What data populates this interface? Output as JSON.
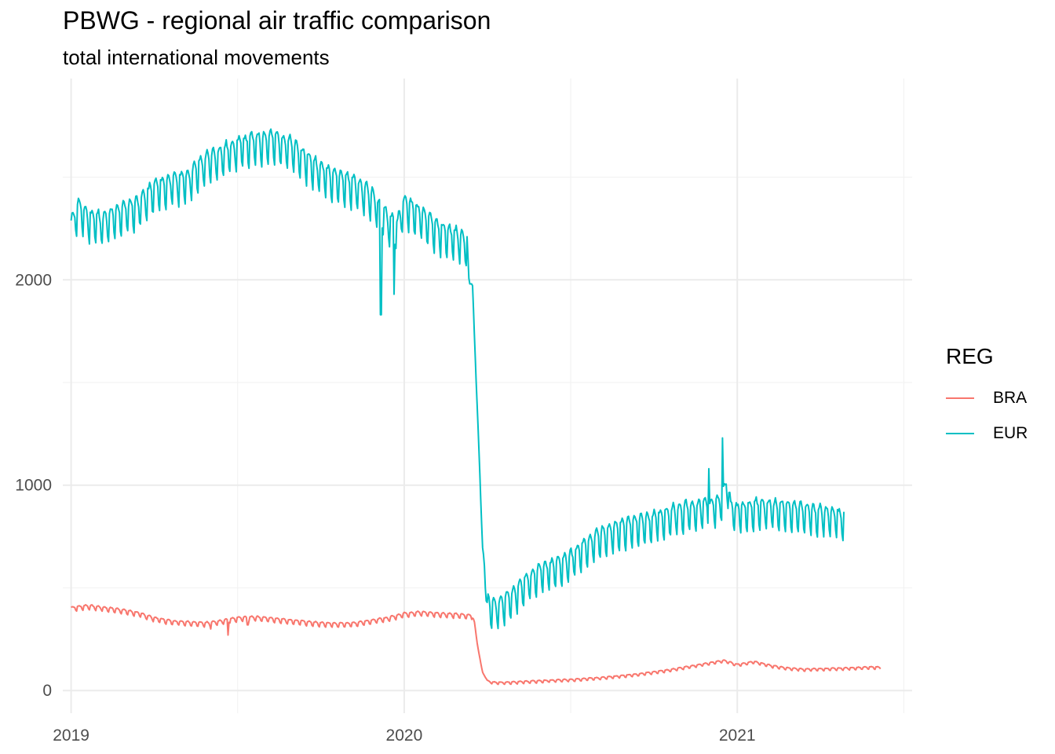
{
  "chart_data": {
    "type": "line",
    "title": "PBWG - regional air traffic comparison",
    "subtitle": "total international movements",
    "xlabel": "",
    "ylabel": "",
    "x_range": [
      2018.975,
      2021.525
    ],
    "ylim": [
      -110,
      2980
    ],
    "x_ticks": [
      {
        "value": 2019,
        "label": "2019"
      },
      {
        "value": 2020,
        "label": "2020"
      },
      {
        "value": 2021,
        "label": "2021"
      }
    ],
    "y_ticks": [
      {
        "value": 0,
        "label": "0"
      },
      {
        "value": 1000,
        "label": "1000"
      },
      {
        "value": 2000,
        "label": "2000"
      }
    ],
    "minor_x": [
      2019.5,
      2020.5,
      2021.5
    ],
    "minor_y": [
      500,
      1500,
      2500
    ],
    "legend": {
      "title": "REG",
      "position": "right"
    },
    "series": [
      {
        "name": "BRA",
        "color": "#F8766D",
        "weekly_amplitude": 15,
        "points": [
          [
            2019.0,
            400
          ],
          [
            2019.05,
            410
          ],
          [
            2019.1,
            400
          ],
          [
            2019.15,
            390
          ],
          [
            2019.2,
            375
          ],
          [
            2019.25,
            350
          ],
          [
            2019.3,
            335
          ],
          [
            2019.35,
            330
          ],
          [
            2019.4,
            325
          ],
          [
            2019.45,
            335
          ],
          [
            2019.5,
            350
          ],
          [
            2019.55,
            355
          ],
          [
            2019.6,
            348
          ],
          [
            2019.65,
            340
          ],
          [
            2019.7,
            332
          ],
          [
            2019.75,
            325
          ],
          [
            2019.8,
            322
          ],
          [
            2019.85,
            325
          ],
          [
            2019.9,
            338
          ],
          [
            2019.95,
            350
          ],
          [
            2020.0,
            372
          ],
          [
            2020.05,
            378
          ],
          [
            2020.1,
            372
          ],
          [
            2020.15,
            368
          ],
          [
            2020.2,
            362
          ],
          [
            2020.21,
            345
          ],
          [
            2020.22,
            220
          ],
          [
            2020.235,
            90
          ],
          [
            2020.25,
            45
          ],
          [
            2020.27,
            38
          ],
          [
            2020.3,
            38
          ],
          [
            2020.4,
            45
          ],
          [
            2020.5,
            52
          ],
          [
            2020.6,
            62
          ],
          [
            2020.7,
            78
          ],
          [
            2020.8,
            100
          ],
          [
            2020.9,
            128
          ],
          [
            2020.96,
            145
          ],
          [
            2021.0,
            125
          ],
          [
            2021.02,
            130
          ],
          [
            2021.05,
            140
          ],
          [
            2021.1,
            120
          ],
          [
            2021.15,
            108
          ],
          [
            2021.2,
            102
          ],
          [
            2021.3,
            106
          ],
          [
            2021.4,
            112
          ],
          [
            2021.43,
            112
          ]
        ],
        "dips": [
          [
            2019.42,
            300
          ],
          [
            2019.47,
            270
          ],
          [
            2019.53,
            320
          ]
        ]
      },
      {
        "name": "EUR",
        "color": "#00BFC4",
        "weekly_amplitude": 105,
        "points": [
          [
            2019.0,
            2250
          ],
          [
            2019.02,
            2340
          ],
          [
            2019.05,
            2290
          ],
          [
            2019.1,
            2270
          ],
          [
            2019.15,
            2320
          ],
          [
            2019.2,
            2350
          ],
          [
            2019.25,
            2430
          ],
          [
            2019.3,
            2460
          ],
          [
            2019.35,
            2480
          ],
          [
            2019.4,
            2560
          ],
          [
            2019.45,
            2600
          ],
          [
            2019.5,
            2640
          ],
          [
            2019.55,
            2660
          ],
          [
            2019.6,
            2670
          ],
          [
            2019.65,
            2650
          ],
          [
            2019.7,
            2580
          ],
          [
            2019.75,
            2520
          ],
          [
            2019.8,
            2480
          ],
          [
            2019.85,
            2450
          ],
          [
            2019.9,
            2400
          ],
          [
            2019.95,
            2280
          ],
          [
            2019.98,
            2250
          ],
          [
            2020.0,
            2360
          ],
          [
            2020.05,
            2300
          ],
          [
            2020.1,
            2230
          ],
          [
            2020.15,
            2200
          ],
          [
            2020.18,
            2180
          ],
          [
            2020.19,
            2160
          ],
          [
            2020.195,
            1980
          ],
          [
            2020.205,
            1980
          ],
          [
            2020.215,
            1550
          ],
          [
            2020.225,
            1150
          ],
          [
            2020.235,
            700
          ],
          [
            2020.24,
            640
          ],
          [
            2020.245,
            440
          ],
          [
            2020.26,
            400
          ],
          [
            2020.28,
            390
          ],
          [
            2020.3,
            420
          ],
          [
            2020.33,
            460
          ],
          [
            2020.36,
            510
          ],
          [
            2020.4,
            560
          ],
          [
            2020.45,
            590
          ],
          [
            2020.5,
            630
          ],
          [
            2020.55,
            700
          ],
          [
            2020.6,
            750
          ],
          [
            2020.65,
            780
          ],
          [
            2020.7,
            800
          ],
          [
            2020.75,
            820
          ],
          [
            2020.8,
            850
          ],
          [
            2020.85,
            870
          ],
          [
            2020.9,
            880
          ],
          [
            2020.95,
            900
          ],
          [
            2020.96,
            950
          ],
          [
            2020.97,
            1000
          ],
          [
            2020.98,
            880
          ],
          [
            2021.0,
            860
          ],
          [
            2021.05,
            880
          ],
          [
            2021.1,
            880
          ],
          [
            2021.15,
            870
          ],
          [
            2021.2,
            860
          ],
          [
            2021.25,
            850
          ],
          [
            2021.3,
            840
          ],
          [
            2021.32,
            830
          ]
        ],
        "spikes": [
          [
            2019.93,
            1830
          ],
          [
            2019.97,
            1930
          ],
          [
            2020.955,
            1230
          ],
          [
            2020.915,
            1080
          ]
        ]
      }
    ]
  }
}
